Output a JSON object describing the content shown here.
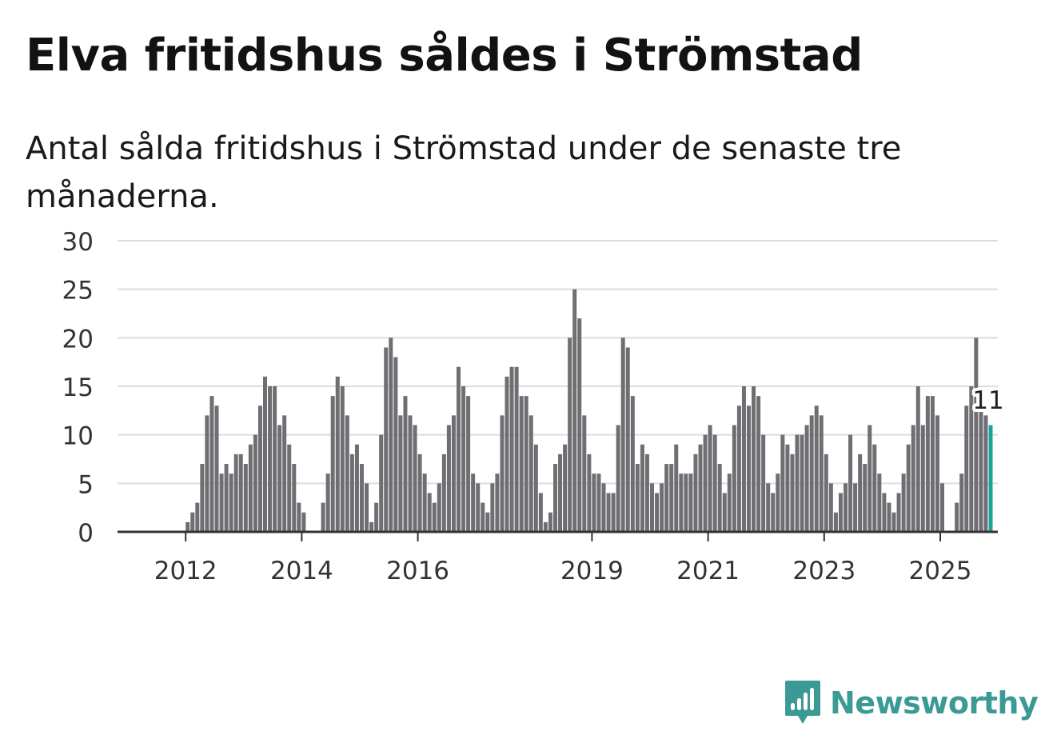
{
  "header": {
    "title": "Elva fritidshus såldes i Strömstad",
    "subtitle": "Antal sålda fritidshus i Strömstad under de senaste tre månaderna."
  },
  "brand": {
    "name": "Newsworthy",
    "color": "#3b9a93"
  },
  "colors": {
    "bar": "#6e6e73",
    "highlight": "#1aa39a",
    "grid": "#dddddd",
    "axis": "#333333"
  },
  "chart_data": {
    "type": "bar",
    "title": "Elva fritidshus såldes i Strömstad",
    "xlabel": "",
    "ylabel": "",
    "ylim": [
      0,
      30
    ],
    "yticks": [
      0,
      5,
      10,
      15,
      20,
      25,
      30
    ],
    "grid": true,
    "start": "2011-01",
    "period": "month",
    "xticks": [
      {
        "label": "2012",
        "index": 12
      },
      {
        "label": "2014",
        "index": 36
      },
      {
        "label": "2016",
        "index": 60
      },
      {
        "label": "2019",
        "index": 96
      },
      {
        "label": "2021",
        "index": 120
      },
      {
        "label": "2023",
        "index": 144
      },
      {
        "label": "2025",
        "index": 168
      }
    ],
    "values": [
      0,
      0,
      0,
      0,
      0,
      0,
      0,
      0,
      0,
      0,
      0,
      0,
      1,
      2,
      3,
      7,
      12,
      14,
      13,
      6,
      7,
      6,
      8,
      8,
      7,
      9,
      10,
      13,
      16,
      15,
      15,
      11,
      12,
      9,
      7,
      3,
      2,
      0,
      0,
      0,
      3,
      6,
      14,
      16,
      15,
      12,
      8,
      9,
      7,
      5,
      1,
      3,
      10,
      19,
      20,
      18,
      12,
      14,
      12,
      11,
      8,
      6,
      4,
      3,
      5,
      8,
      11,
      12,
      17,
      15,
      14,
      6,
      5,
      3,
      2,
      5,
      6,
      12,
      16,
      17,
      17,
      14,
      14,
      12,
      9,
      4,
      1,
      2,
      7,
      8,
      9,
      20,
      25,
      22,
      12,
      8,
      6,
      6,
      5,
      4,
      4,
      11,
      20,
      19,
      14,
      7,
      9,
      8,
      5,
      4,
      5,
      7,
      7,
      9,
      6,
      6,
      6,
      8,
      9,
      10,
      11,
      10,
      7,
      4,
      6,
      11,
      13,
      15,
      13,
      15,
      14,
      10,
      5,
      4,
      6,
      10,
      9,
      8,
      10,
      10,
      11,
      12,
      13,
      12,
      8,
      5,
      2,
      4,
      5,
      10,
      5,
      8,
      7,
      11,
      9,
      6,
      4,
      3,
      2,
      4,
      6,
      9,
      11,
      15,
      11,
      14,
      14,
      12,
      5,
      0,
      0,
      3,
      6,
      13,
      15,
      20,
      13,
      12,
      11
    ],
    "highlight": {
      "value": 11,
      "label": "11"
    }
  }
}
